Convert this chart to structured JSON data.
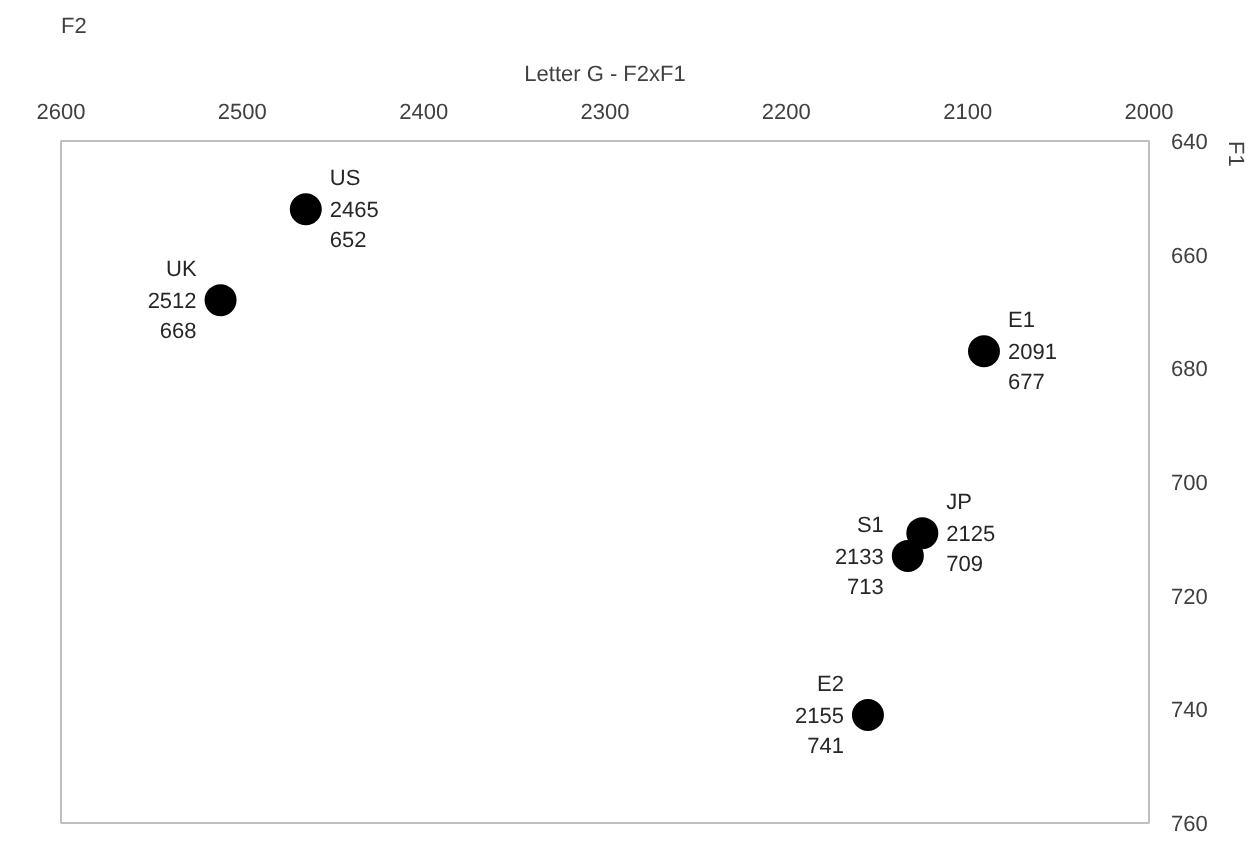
{
  "chart_data": {
    "type": "scatter",
    "title": "Letter G - F2xF1",
    "xlabel": "F2",
    "ylabel": "F1",
    "xlim": [
      2600,
      2000
    ],
    "ylim": [
      760,
      640
    ],
    "xticks": [
      2600,
      2500,
      2400,
      2300,
      2200,
      2100,
      2000
    ],
    "yticks": [
      640,
      660,
      680,
      700,
      720,
      740,
      760
    ],
    "marker": "circle",
    "grid": false,
    "legend": false,
    "data_labels": true,
    "annotations": [
      {
        "text": "2512",
        "x": 2512,
        "y": 668
      },
      {
        "text": "2465",
        "x": 2465,
        "y": 652
      },
      {
        "text": "2091",
        "x": 2091,
        "y": 677
      },
      {
        "text": "2125",
        "x": 2125,
        "y": 709
      },
      {
        "text": "2133",
        "x": 2133,
        "y": 713
      },
      {
        "text": "2155",
        "x": 2155,
        "y": 741
      }
    ],
    "series": [
      {
        "name": "UK",
        "color": "#000000",
        "x": [
          2512
        ],
        "values": [
          668
        ]
      },
      {
        "name": "US",
        "color": "#000000",
        "x": [
          2465
        ],
        "values": [
          652
        ]
      },
      {
        "name": "E1",
        "color": "#000000",
        "x": [
          2091
        ],
        "values": [
          677
        ]
      },
      {
        "name": "JP",
        "color": "#000000",
        "x": [
          2125
        ],
        "values": [
          709
        ]
      },
      {
        "name": "S1",
        "color": "#000000",
        "x": [
          2133
        ],
        "values": [
          713
        ]
      },
      {
        "name": "E2",
        "color": "#000000",
        "x": [
          2155
        ],
        "values": [
          741
        ]
      }
    ]
  }
}
